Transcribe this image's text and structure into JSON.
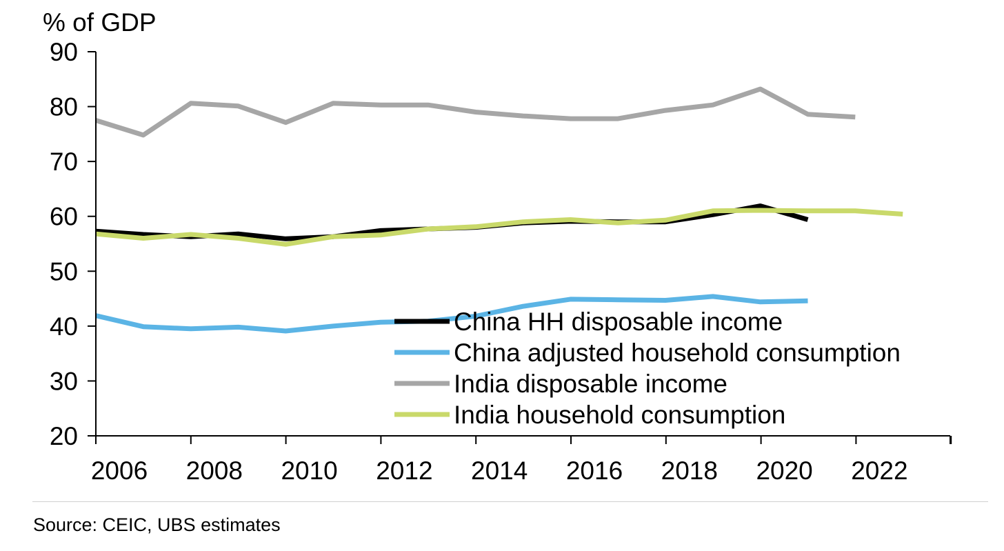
{
  "chart_data": {
    "type": "line",
    "title": "",
    "ylabel": "% of GDP",
    "xlabel": "",
    "ylim": [
      20,
      90
    ],
    "yticks": [
      20,
      30,
      40,
      50,
      60,
      70,
      80,
      90
    ],
    "xlim": [
      2006,
      2024
    ],
    "xticks": [
      2006,
      2008,
      2010,
      2012,
      2014,
      2016,
      2018,
      2020,
      2022
    ],
    "grid": false,
    "legend_position": "bottom-right (inside plot)",
    "series": [
      {
        "name": "China HH disposable income",
        "color": "#000000",
        "x": [
          2006,
          2007,
          2008,
          2009,
          2010,
          2011,
          2012,
          2013,
          2014,
          2015,
          2016,
          2017,
          2018,
          2019,
          2020,
          2021
        ],
        "values": [
          57.3,
          56.7,
          56.3,
          56.8,
          55.9,
          56.3,
          57.4,
          57.7,
          58.0,
          58.8,
          59.1,
          59.0,
          59.0,
          60.3,
          61.9,
          59.4
        ]
      },
      {
        "name": "China adjusted household consumption",
        "color": "#5BB4E5",
        "x": [
          2006,
          2007,
          2008,
          2009,
          2010,
          2011,
          2012,
          2013,
          2014,
          2015,
          2016,
          2017,
          2018,
          2019,
          2020,
          2021
        ],
        "values": [
          41.9,
          39.9,
          39.5,
          39.8,
          39.1,
          40.0,
          40.7,
          40.9,
          41.8,
          43.6,
          44.9,
          44.8,
          44.7,
          45.4,
          44.4,
          44.6
        ]
      },
      {
        "name": "India disposable income",
        "color": "#A6A6A6",
        "x": [
          2006,
          2007,
          2008,
          2009,
          2010,
          2011,
          2012,
          2013,
          2014,
          2015,
          2016,
          2017,
          2018,
          2019,
          2020,
          2021,
          2022
        ],
        "values": [
          77.5,
          74.8,
          80.6,
          80.1,
          77.1,
          80.6,
          80.3,
          80.3,
          79.0,
          78.3,
          77.8,
          77.8,
          79.3,
          80.3,
          83.2,
          78.6,
          78.1
        ]
      },
      {
        "name": "India household consumption",
        "color": "#C9D96A",
        "x": [
          2006,
          2007,
          2008,
          2009,
          2010,
          2011,
          2012,
          2013,
          2014,
          2015,
          2016,
          2017,
          2018,
          2019,
          2020,
          2021,
          2022,
          2023
        ],
        "values": [
          56.8,
          56.0,
          56.7,
          56.0,
          54.9,
          56.3,
          56.6,
          57.7,
          58.1,
          59.0,
          59.4,
          58.8,
          59.3,
          61.0,
          61.1,
          61.0,
          61.0,
          60.4
        ]
      }
    ]
  },
  "footer": {
    "source": "Source: CEIC, UBS estimates"
  }
}
